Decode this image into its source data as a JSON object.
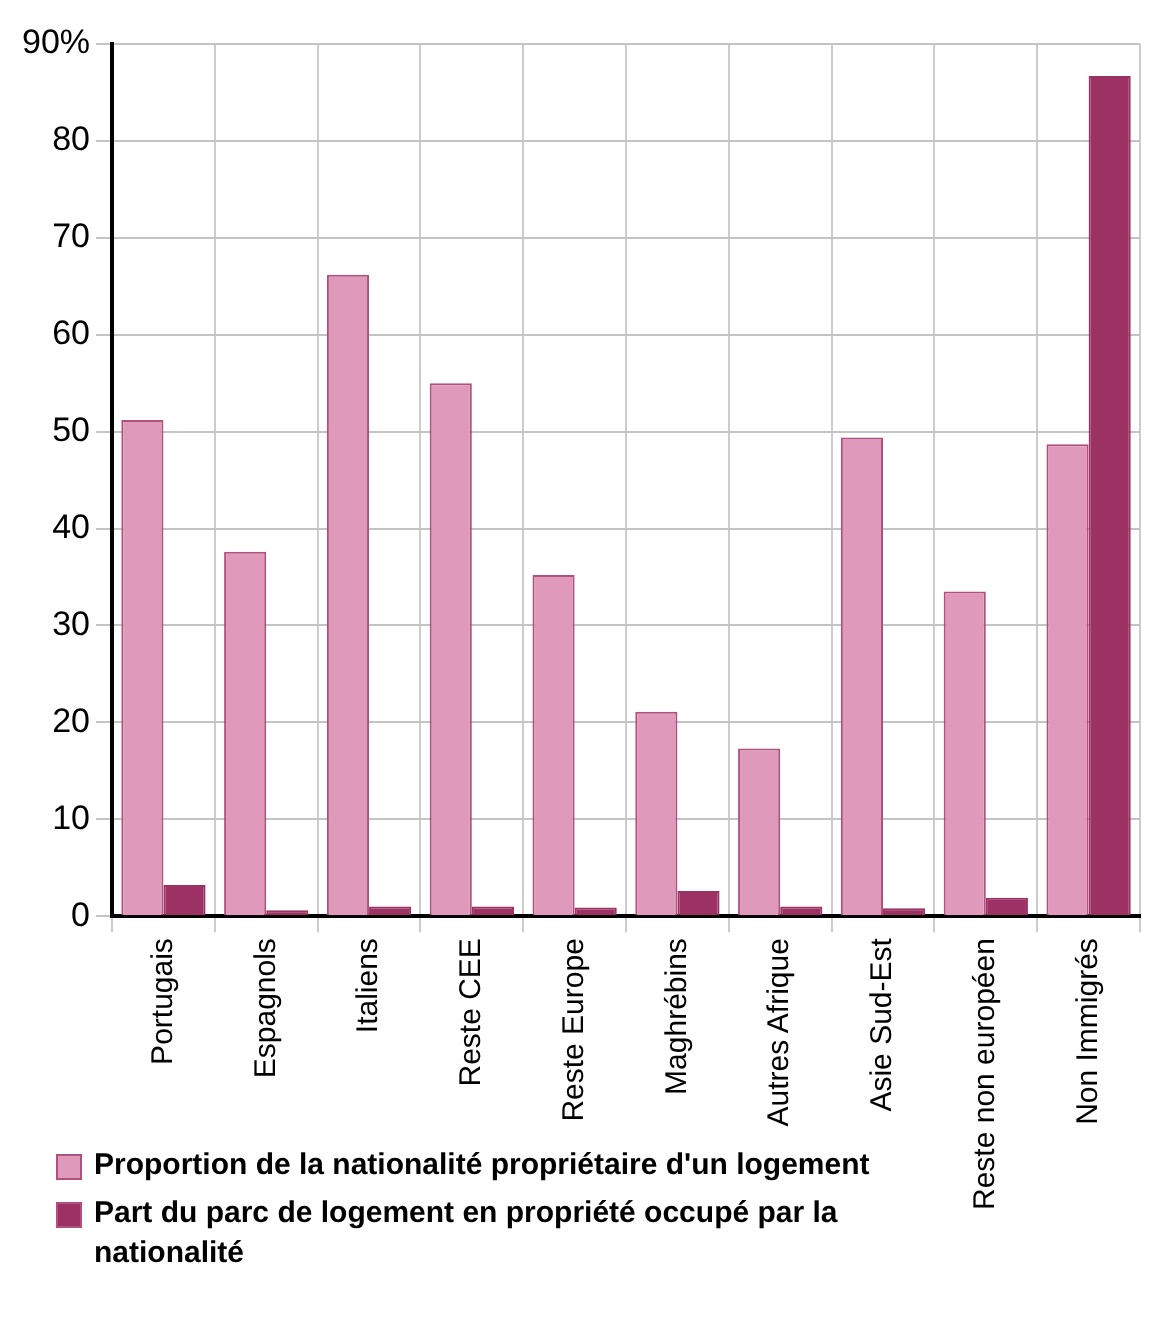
{
  "chart_data": {
    "type": "bar",
    "categories": [
      "Portugais",
      "Espagnols",
      "Italiens",
      "Reste CEE",
      "Reste Europe",
      "Maghrébins",
      "Autres Afrique",
      "Asie Sud-Est",
      "Reste non européen",
      "Non Immigrés"
    ],
    "series": [
      {
        "name": "Proportion de la nationalité propriétaire d'un logement",
        "color": "#df9abb",
        "values": [
          51.2,
          37.6,
          66.2,
          55,
          35.2,
          21.1,
          17.3,
          49.4,
          33.5,
          48.7
        ]
      },
      {
        "name": "Part du parc de logement en propriété occupé par la nationalité",
        "color": "#9b3263",
        "values": [
          3.2,
          0.6,
          1.0,
          1.0,
          0.9,
          2.6,
          1.0,
          0.8,
          1.9,
          86.7
        ]
      }
    ],
    "ylim": [
      0,
      90
    ],
    "yticks": [
      0,
      10,
      20,
      30,
      40,
      50,
      60,
      70,
      80,
      {
        "value": 90,
        "label": "90%"
      }
    ],
    "grid": true,
    "legend": "bottom"
  }
}
